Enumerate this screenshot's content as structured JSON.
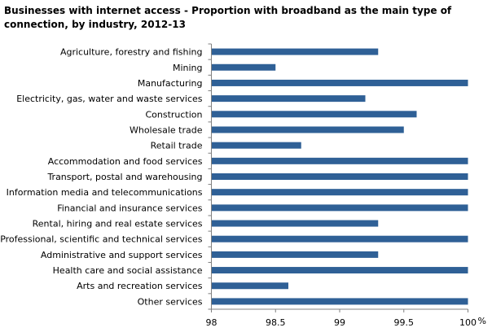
{
  "chart_data": {
    "type": "bar",
    "orientation": "horizontal",
    "title": "Businesses with internet access - Proportion with broadband as the main type of connection, by industry, 2012-13",
    "xlabel": "",
    "x_unit": "%",
    "ylabel": "",
    "xlim": [
      98,
      100
    ],
    "xticks": [
      "98",
      "98.5",
      "99",
      "99.5",
      "100"
    ],
    "grid": false,
    "bar_color": "#2F6096",
    "categories": [
      "Agriculture, forestry and fishing",
      "Mining",
      "Manufacturing",
      "Electricity, gas, water and waste services",
      "Construction",
      "Wholesale trade",
      "Retail trade",
      "Accommodation and food services",
      "Transport, postal and warehousing",
      "Information media and telecommunications",
      "Financial and insurance services",
      "Rental, hiring and real estate services",
      "Professional, scientific and technical services",
      "Administrative and support services",
      "Health care and social assistance",
      "Arts and recreation services",
      "Other services"
    ],
    "values": [
      99.3,
      98.5,
      100,
      99.2,
      99.6,
      99.5,
      98.7,
      100,
      100,
      100,
      100,
      99.3,
      100,
      99.3,
      100,
      98.6,
      100
    ]
  }
}
